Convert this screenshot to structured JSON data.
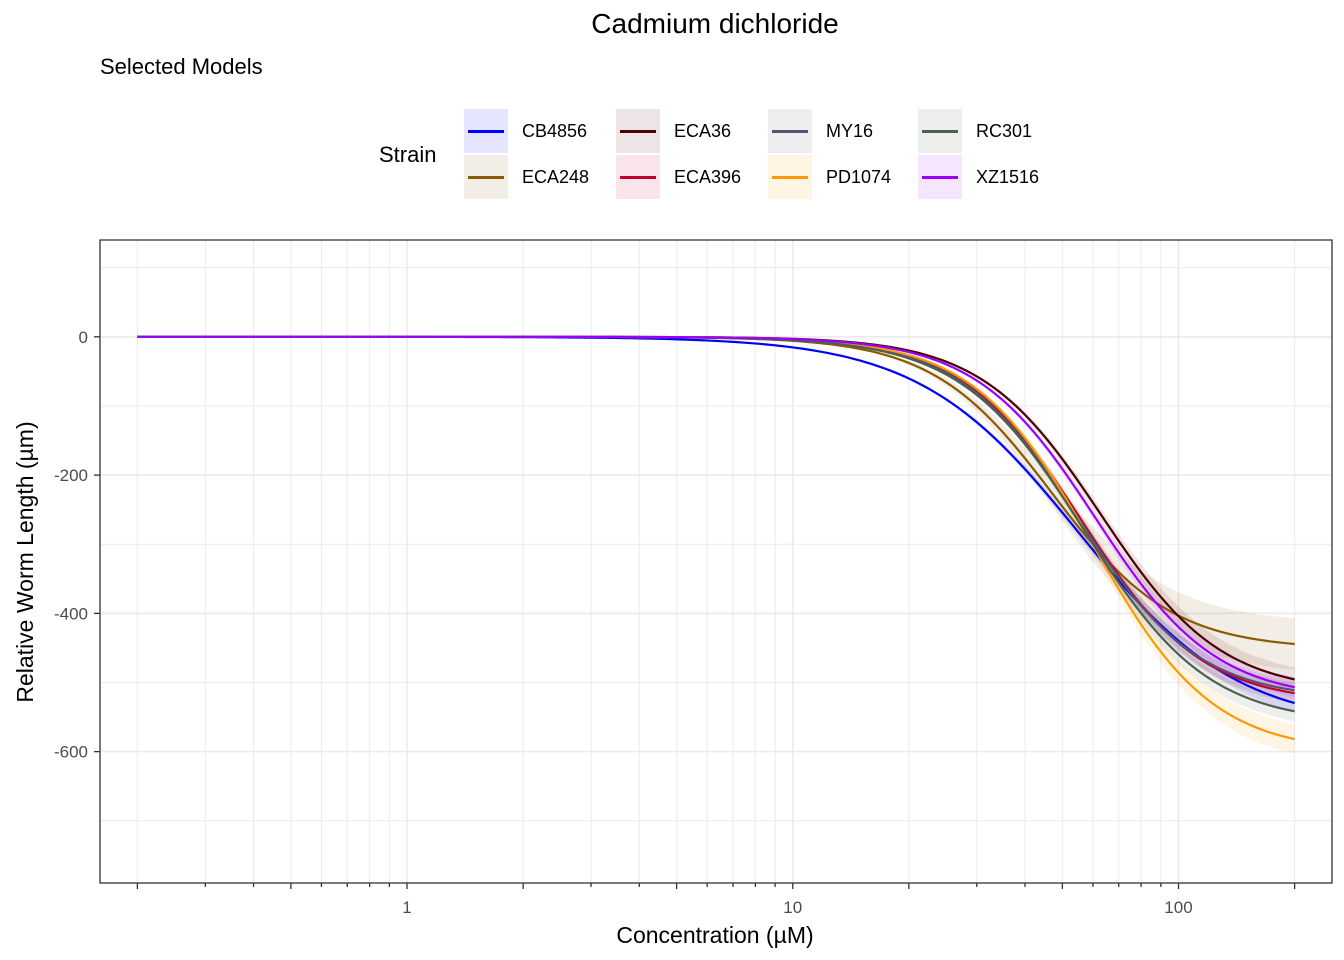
{
  "chart_data": {
    "type": "line",
    "title": "Cadmium dichloride",
    "subtitle": "Selected Models",
    "xlabel": "Concentration (µM)",
    "ylabel": "Relative Worm Length (µm)",
    "x_scale": "log10",
    "xlim": [
      0.16,
      250
    ],
    "ylim": [
      -790,
      140
    ],
    "x_ticks": [
      {
        "value": 1,
        "label": "1"
      },
      {
        "value": 10,
        "label": "10"
      },
      {
        "value": 100,
        "label": "100"
      }
    ],
    "y_ticks": [
      {
        "value": 0,
        "label": "0"
      },
      {
        "value": -200,
        "label": "-200"
      },
      {
        "value": -400,
        "label": "-400"
      },
      {
        "value": -600,
        "label": "-600"
      }
    ],
    "x_start": 0.2,
    "x_end": 200,
    "legend": {
      "title": "Strain",
      "position": "top"
    },
    "model": "3-parameter log-logistic: y = d / (1 + (ec50 / x)^b)",
    "series": [
      {
        "name": "CB4856",
        "color": "#0000FF",
        "d": -565,
        "ec50": 55,
        "b": 2.1,
        "band": 15
      },
      {
        "name": "ECA248",
        "color": "#8B5A00",
        "d": -452,
        "ec50": 47,
        "b": 2.8,
        "band": 38
      },
      {
        "name": "ECA36",
        "color": "#4C0000",
        "d": -515,
        "ec50": 63,
        "b": 2.8,
        "band": 18
      },
      {
        "name": "ECA396",
        "color": "#C2002C",
        "d": -530,
        "ec50": 56,
        "b": 2.8,
        "band": 15
      },
      {
        "name": "MY16",
        "color": "#545473",
        "d": -525,
        "ec50": 55,
        "b": 2.8,
        "band": 15
      },
      {
        "name": "PD1074",
        "color": "#FF9900",
        "d": -602,
        "ec50": 60,
        "b": 2.8,
        "band": 22
      },
      {
        "name": "RC301",
        "color": "#4D5F4F",
        "d": -560,
        "ec50": 57,
        "b": 2.7,
        "band": 15
      },
      {
        "name": "XZ1516",
        "color": "#9B00FF",
        "d": -525,
        "ec50": 61,
        "b": 2.8,
        "band": 15
      }
    ]
  }
}
